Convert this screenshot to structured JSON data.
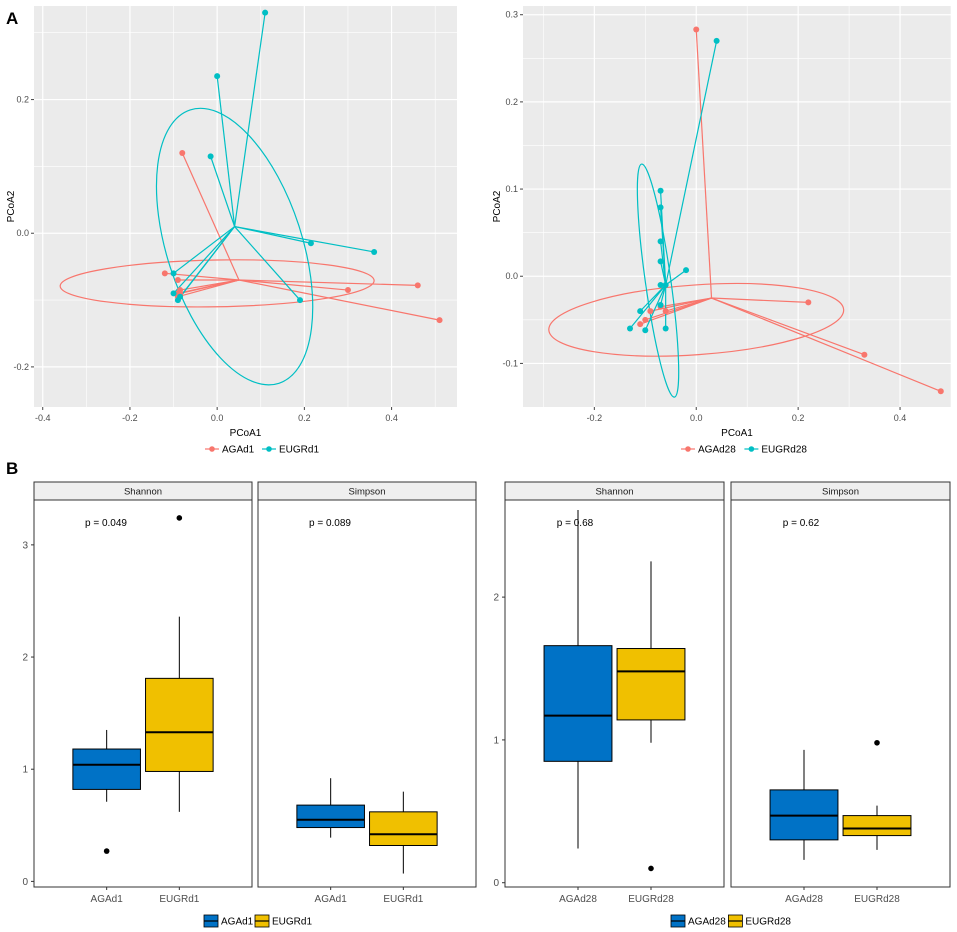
{
  "panel_labels": {
    "a": "A",
    "b": "B"
  },
  "colors": {
    "agagroup": "#F8766D",
    "eugrgroup": "#00BFC4",
    "box_blue": "#0072C6",
    "box_gold": "#F0C000",
    "panel_bg": "#EBEBEB",
    "grid": "#FFFFFF",
    "strip_bg": "#EFEFEF"
  },
  "chart_data": [
    {
      "type": "scatter",
      "subtype": "pcoa",
      "xlabel": "PCoA1",
      "ylabel": "PCoA2",
      "xlim": [
        -0.42,
        0.55
      ],
      "ylim": [
        -0.26,
        0.34
      ],
      "xticks": [
        -0.4,
        -0.2,
        0.0,
        0.2,
        0.4
      ],
      "yticks": [
        -0.2,
        0.0,
        0.2
      ],
      "xtick_labels": [
        "-0.4",
        "-0.2",
        "0.0",
        "0.2",
        "0.4"
      ],
      "ytick_labels": [
        "-0.2",
        "0.0",
        "0.2"
      ],
      "legend": [
        "AGAd1",
        "EUGRd1"
      ],
      "series": [
        {
          "name": "AGAd1",
          "color": "#F8766D",
          "centroid": [
            0.05,
            -0.07
          ],
          "points": [
            [
              -0.08,
              0.12
            ],
            [
              -0.12,
              -0.06
            ],
            [
              -0.09,
              -0.07
            ],
            [
              -0.09,
              -0.09
            ],
            [
              -0.09,
              -0.095
            ],
            [
              -0.085,
              -0.085
            ],
            [
              0.46,
              -0.078
            ],
            [
              0.51,
              -0.13
            ],
            [
              0.3,
              -0.085
            ],
            [
              -0.085,
              -0.09
            ]
          ],
          "ellipse": {
            "cx": 0.0,
            "cy": -0.075,
            "rx": 0.36,
            "ry": 0.035,
            "angle_deg": 1
          }
        },
        {
          "name": "EUGRd1",
          "color": "#00BFC4",
          "centroid": [
            0.04,
            0.01
          ],
          "points": [
            [
              0.11,
              0.33
            ],
            [
              0.0,
              0.235
            ],
            [
              -0.015,
              0.115
            ],
            [
              0.215,
              -0.015
            ],
            [
              0.36,
              -0.028
            ],
            [
              0.19,
              -0.1
            ],
            [
              -0.1,
              -0.06
            ],
            [
              -0.1,
              -0.09
            ],
            [
              -0.09,
              -0.1
            ],
            [
              -0.085,
              -0.095
            ]
          ],
          "ellipse": {
            "cx": 0.04,
            "cy": -0.02,
            "rx": 0.155,
            "ry": 0.215,
            "angle_deg": 18
          }
        }
      ]
    },
    {
      "type": "scatter",
      "subtype": "pcoa",
      "xlabel": "PCoA1",
      "ylabel": "PCoA2",
      "xlim": [
        -0.34,
        0.5
      ],
      "ylim": [
        -0.15,
        0.31
      ],
      "xticks": [
        -0.2,
        0.0,
        0.2,
        0.4
      ],
      "yticks": [
        -0.1,
        0.0,
        0.1,
        0.2,
        0.3
      ],
      "xtick_labels": [
        "-0.2",
        "0.0",
        "0.2",
        "0.4"
      ],
      "ytick_labels": [
        "-0.1",
        "0.0",
        "0.1",
        "0.2",
        "0.3"
      ],
      "legend": [
        "AGAd28",
        "EUGRd28"
      ],
      "series": [
        {
          "name": "AGAd28",
          "color": "#F8766D",
          "centroid": [
            0.03,
            -0.025
          ],
          "points": [
            [
              0.0,
              0.283
            ],
            [
              0.22,
              -0.03
            ],
            [
              0.33,
              -0.09
            ],
            [
              0.48,
              -0.132
            ],
            [
              -0.07,
              -0.035
            ],
            [
              -0.06,
              -0.04
            ],
            [
              -0.1,
              -0.05
            ],
            [
              -0.11,
              -0.055
            ],
            [
              -0.09,
              -0.04
            ]
          ],
          "ellipse": {
            "cx": 0.0,
            "cy": -0.05,
            "rx": 0.29,
            "ry": 0.04,
            "angle_deg": 4
          }
        },
        {
          "name": "EUGRd28",
          "color": "#00BFC4",
          "centroid": [
            -0.06,
            -0.01
          ],
          "points": [
            [
              0.04,
              0.27
            ],
            [
              -0.07,
              0.098
            ],
            [
              -0.07,
              0.079
            ],
            [
              -0.07,
              0.04
            ],
            [
              -0.07,
              0.017
            ],
            [
              -0.07,
              -0.01
            ],
            [
              -0.06,
              -0.01
            ],
            [
              -0.02,
              0.007
            ],
            [
              -0.07,
              -0.033
            ],
            [
              -0.1,
              -0.062
            ],
            [
              -0.13,
              -0.06
            ],
            [
              -0.11,
              -0.04
            ],
            [
              -0.06,
              -0.06
            ]
          ],
          "ellipse": {
            "cx": -0.075,
            "cy": -0.005,
            "rx": 0.025,
            "ry": 0.135,
            "angle_deg": 8
          }
        }
      ]
    },
    {
      "type": "box",
      "facets": [
        {
          "strip": "Shannon",
          "pvalue": "p = 0.049",
          "categories": [
            "AGAd1",
            "EUGRd1"
          ],
          "boxes": [
            {
              "name": "AGAd1",
              "min": 0.71,
              "q1": 0.82,
              "median": 1.04,
              "q3": 1.18,
              "max": 1.35,
              "outliers": [
                0.27
              ]
            },
            {
              "name": "EUGRd1",
              "min": 0.62,
              "q1": 0.98,
              "median": 1.33,
              "q3": 1.81,
              "max": 2.36,
              "outliers": [
                3.24
              ]
            }
          ]
        },
        {
          "strip": "Simpson",
          "pvalue": "p = 0.089",
          "categories": [
            "AGAd1",
            "EUGRd1"
          ],
          "boxes": [
            {
              "name": "AGAd1",
              "min": 0.39,
              "q1": 0.48,
              "median": 0.55,
              "q3": 0.68,
              "max": 0.92,
              "outliers": []
            },
            {
              "name": "EUGRd1",
              "min": 0.07,
              "q1": 0.32,
              "median": 0.42,
              "q3": 0.62,
              "max": 0.8,
              "outliers": []
            }
          ]
        }
      ],
      "ylim": [
        -0.05,
        3.4
      ],
      "yticks": [
        0,
        1,
        2,
        3
      ],
      "ytick_labels": [
        "0",
        "1",
        "2",
        "3"
      ],
      "legend": [
        "AGAd1",
        "EUGRd1"
      ]
    },
    {
      "type": "box",
      "facets": [
        {
          "strip": "Shannon",
          "pvalue": "p = 0.68",
          "categories": [
            "AGAd28",
            "EUGRd28"
          ],
          "boxes": [
            {
              "name": "AGAd28",
              "min": 0.24,
              "q1": 0.85,
              "median": 1.17,
              "q3": 1.66,
              "max": 2.61,
              "outliers": []
            },
            {
              "name": "EUGRd28",
              "min": 0.98,
              "q1": 1.14,
              "median": 1.48,
              "q3": 1.64,
              "max": 2.25,
              "outliers": [
                0.1
              ]
            }
          ]
        },
        {
          "strip": "Simpson",
          "pvalue": "p = 0.62",
          "categories": [
            "AGAd28",
            "EUGRd28"
          ],
          "boxes": [
            {
              "name": "AGAd28",
              "min": 0.16,
              "q1": 0.3,
              "median": 0.47,
              "q3": 0.65,
              "max": 0.93,
              "outliers": []
            },
            {
              "name": "EUGRd28",
              "min": 0.23,
              "q1": 0.33,
              "median": 0.38,
              "q3": 0.47,
              "max": 0.54,
              "outliers": [
                0.98
              ]
            }
          ]
        }
      ],
      "ylim": [
        -0.03,
        2.68
      ],
      "yticks": [
        0,
        1,
        2
      ],
      "ytick_labels": [
        "0",
        "1",
        "2"
      ],
      "legend": [
        "AGAd28",
        "EUGRd28"
      ]
    }
  ]
}
